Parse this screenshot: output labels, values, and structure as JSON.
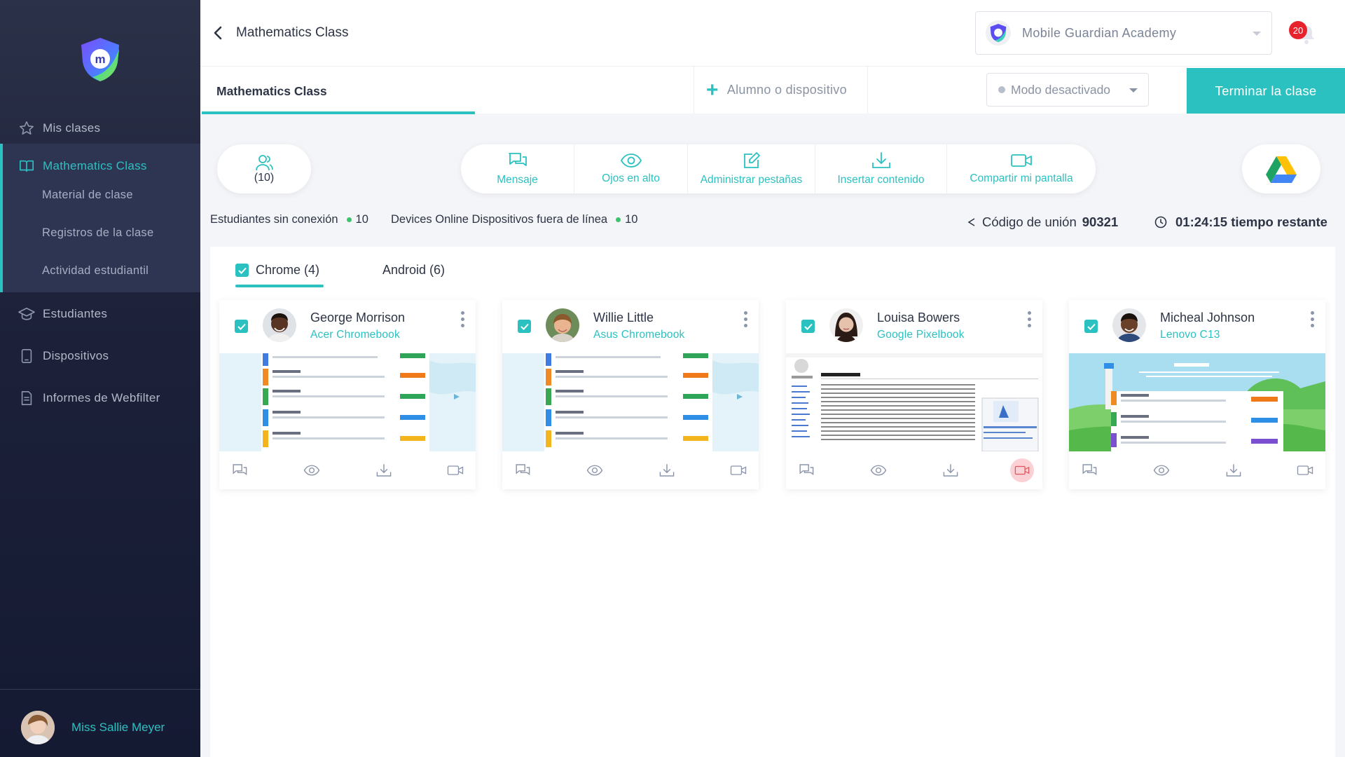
{
  "sidebar": {
    "items": [
      {
        "label": "Mis clases",
        "icon": "star-icon"
      },
      {
        "label": "Mathematics Class",
        "icon": "book-icon"
      },
      {
        "label": "Estudiantes",
        "icon": "graduation-cap-icon"
      },
      {
        "label": "Dispositivos",
        "icon": "tablet-icon"
      },
      {
        "label": "Informes de Webfilter",
        "icon": "report-icon"
      }
    ],
    "subitems": [
      "Material de clase",
      "Registros de la clase",
      "Actividad estudiantil"
    ],
    "user_name": "Miss Sallie Meyer"
  },
  "header": {
    "title": "Mathematics Class",
    "school": "Mobile Guardian Academy",
    "notifications": "20"
  },
  "classbar": {
    "tab": "Mathematics Class",
    "add_label": "Alumno o dispositivo",
    "mode_label": "Modo desactivado",
    "end_label": "Terminar la clase"
  },
  "tools": {
    "count": "(10)",
    "items": [
      {
        "label": "Mensaje",
        "icon": "message-icon"
      },
      {
        "label": "Ojos en alto",
        "icon": "eye-icon"
      },
      {
        "label": "Administrar pestañas",
        "icon": "edit-tabs-icon"
      },
      {
        "label": "Insertar contenido",
        "icon": "download-icon"
      },
      {
        "label": "Compartir mi pantalla",
        "icon": "video-icon"
      }
    ]
  },
  "status": {
    "offline_label": "Estudiantes sin conexión",
    "offline_count": "10",
    "online_label": "Devices Online Dispositivos fuera de línea",
    "online_count": "10",
    "join_label": "Código de unión",
    "join_code": "90321",
    "time": "01:24:15",
    "time_label": "tiempo restante"
  },
  "device_tabs": {
    "chrome": "Chrome (4)",
    "android": "Android (6)"
  },
  "students": [
    {
      "name": "George Morrison",
      "device": "Acer Chromebook",
      "skin": "#5a3422",
      "hair": "#1d120c"
    },
    {
      "name": "Willie Little",
      "device": "Asus Chromebook",
      "skin": "#e9b48f",
      "hair": "#8a5a2d"
    },
    {
      "name": "Louisa Bowers",
      "device": "Google Pixelbook",
      "skin": "#e6c2ad",
      "hair": "#2b1b16"
    },
    {
      "name": "Micheal Johnson",
      "device": "Lenovo C13",
      "skin": "#6b4028",
      "hair": "#1a100b"
    }
  ],
  "colors": {
    "accent": "#2bc1c1",
    "sidebar": "#1c2139",
    "alert": "#e8222c"
  }
}
